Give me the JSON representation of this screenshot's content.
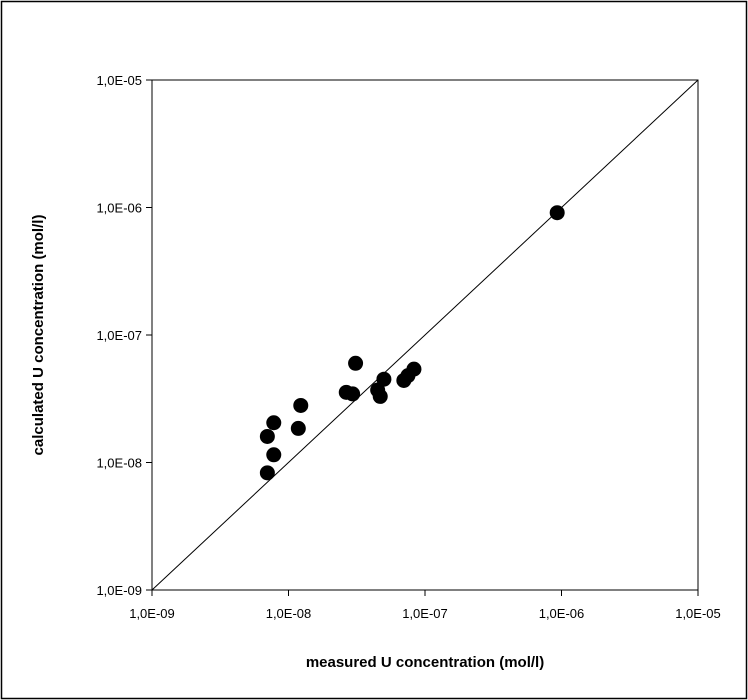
{
  "chart_data": {
    "type": "scatter",
    "xlabel": "measured U concentration (mol/l)",
    "ylabel": "calculated U concentration (mol/l)",
    "x_scale": "log",
    "y_scale": "log",
    "xlim": [
      1e-09,
      1e-05
    ],
    "ylim": [
      1e-09,
      1e-05
    ],
    "x_ticks": [
      1e-09,
      1e-08,
      1e-07,
      1e-06,
      1e-05
    ],
    "x_tick_labels": [
      "1,0E-09",
      "1,0E-08",
      "1,0E-07",
      "1,0E-06",
      "1,0E-05"
    ],
    "y_ticks": [
      1e-09,
      1e-08,
      1e-07,
      1e-06,
      1e-05
    ],
    "y_tick_labels": [
      "1,0E-09",
      "1,0E-08",
      "1,0E-07",
      "1,0E-06",
      "1,0E-05"
    ],
    "grid": false,
    "legend": "none",
    "reference_line": {
      "type": "1:1",
      "from": [
        1e-09,
        1e-09
      ],
      "to": [
        1e-05,
        1e-05
      ]
    },
    "series": [
      {
        "marker": "filled-circle",
        "color": "#000000",
        "points": [
          {
            "x": 9.3e-07,
            "y": 9.1e-07
          },
          {
            "x": 7e-09,
            "y": 8.3e-09
          },
          {
            "x": 7.8e-09,
            "y": 1.15e-08
          },
          {
            "x": 7e-09,
            "y": 1.6e-08
          },
          {
            "x": 7.8e-09,
            "y": 2.05e-08
          },
          {
            "x": 1.18e-08,
            "y": 1.85e-08
          },
          {
            "x": 1.23e-08,
            "y": 2.8e-08
          },
          {
            "x": 2.65e-08,
            "y": 3.55e-08
          },
          {
            "x": 2.95e-08,
            "y": 3.45e-08
          },
          {
            "x": 3.1e-08,
            "y": 6e-08
          },
          {
            "x": 4.5e-08,
            "y": 3.7e-08
          },
          {
            "x": 4.7e-08,
            "y": 3.3e-08
          },
          {
            "x": 5e-08,
            "y": 4.5e-08
          },
          {
            "x": 7e-08,
            "y": 4.4e-08
          },
          {
            "x": 7.5e-08,
            "y": 4.8e-08
          },
          {
            "x": 8.3e-08,
            "y": 5.4e-08
          }
        ]
      }
    ]
  }
}
